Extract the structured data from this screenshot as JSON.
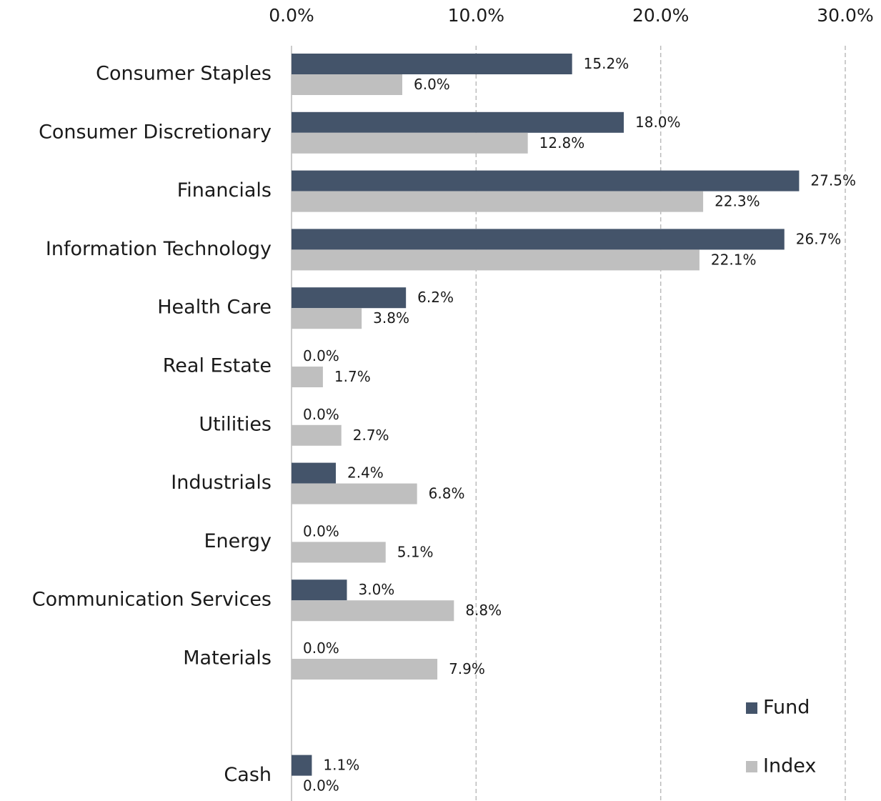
{
  "chart_data": {
    "type": "hbar",
    "categories": [
      "Consumer Staples",
      "Consumer Discretionary",
      "Financials",
      "Information Technology",
      "Health Care",
      "Real Estate",
      "Utilities",
      "Industrials",
      "Energy",
      "Communication Services",
      "Materials",
      null,
      "Cash"
    ],
    "series": [
      {
        "name": "Fund",
        "color": "#44546a",
        "values": [
          15.2,
          18.0,
          27.5,
          26.7,
          6.2,
          0.0,
          0.0,
          2.4,
          0.0,
          3.0,
          0.0,
          null,
          1.1
        ],
        "value_labels": [
          "15.2%",
          "18.0%",
          "27.5%",
          "26.7%",
          "6.2%",
          "0.0%",
          "0.0%",
          "2.4%",
          "0.0%",
          "3.0%",
          "0.0%",
          null,
          "1.1%"
        ]
      },
      {
        "name": "Index",
        "color": "#bfbfbf",
        "values": [
          6.0,
          12.8,
          22.3,
          22.1,
          3.8,
          1.7,
          2.7,
          6.8,
          5.1,
          8.8,
          7.9,
          null,
          0.0
        ],
        "value_labels": [
          "6.0%",
          "12.8%",
          "22.3%",
          "22.1%",
          "3.8%",
          "1.7%",
          "2.7%",
          "6.8%",
          "5.1%",
          "8.8%",
          "7.9%",
          null,
          "0.0%"
        ]
      }
    ],
    "xlim": [
      0,
      30
    ],
    "xticks": [
      {
        "value": 0,
        "label": "0.0%"
      },
      {
        "value": 10,
        "label": "10.0%"
      },
      {
        "value": 20,
        "label": "20.0%"
      },
      {
        "value": 30,
        "label": "30.0%"
      }
    ],
    "grid": true,
    "legend": "lower right"
  }
}
